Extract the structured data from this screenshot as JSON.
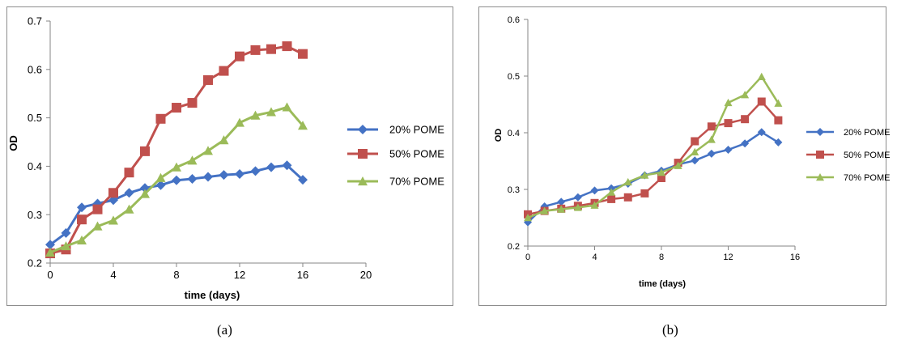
{
  "chart_data": [
    {
      "type": "line",
      "panel_label": "(a)",
      "xlabel": "time (days)",
      "ylabel": "OD",
      "xlim": [
        0,
        20
      ],
      "ylim": [
        0.2,
        0.7
      ],
      "x_ticks": [
        "0",
        "4",
        "8",
        "12",
        "16",
        "20"
      ],
      "y_ticks": [
        "0.2",
        "0.3",
        "0.4",
        "0.5",
        "0.6",
        "0.7"
      ],
      "grid": false,
      "legend_position": "right",
      "series": [
        {
          "name": "20% POME",
          "color": "#4472c4",
          "marker": "diamond",
          "x": [
            0,
            1,
            2,
            3,
            4,
            5,
            6,
            7,
            8,
            9,
            10,
            11,
            12,
            13,
            14,
            15,
            16
          ],
          "y": [
            0.238,
            0.262,
            0.315,
            0.323,
            0.33,
            0.345,
            0.355,
            0.361,
            0.371,
            0.374,
            0.378,
            0.382,
            0.384,
            0.39,
            0.398,
            0.402,
            0.372
          ]
        },
        {
          "name": "50% POME",
          "color": "#c0504d",
          "marker": "square",
          "x": [
            0,
            1,
            2,
            3,
            4,
            5,
            6,
            7,
            8,
            9,
            10,
            11,
            12,
            13,
            14,
            15,
            16
          ],
          "y": [
            0.22,
            0.228,
            0.29,
            0.311,
            0.345,
            0.387,
            0.431,
            0.498,
            0.521,
            0.531,
            0.578,
            0.597,
            0.627,
            0.64,
            0.642,
            0.648,
            0.632
          ]
        },
        {
          "name": "70% POME",
          "color": "#9bbb59",
          "marker": "triangle",
          "x": [
            0,
            1,
            2,
            3,
            4,
            5,
            6,
            7,
            8,
            9,
            10,
            11,
            12,
            13,
            14,
            15,
            16
          ],
          "y": [
            0.222,
            0.235,
            0.247,
            0.276,
            0.288,
            0.311,
            0.343,
            0.376,
            0.398,
            0.412,
            0.432,
            0.454,
            0.49,
            0.505,
            0.512,
            0.522,
            0.484
          ]
        }
      ]
    },
    {
      "type": "line",
      "panel_label": "(b)",
      "xlabel": "time (days)",
      "ylabel": "OD",
      "xlim": [
        0,
        16
      ],
      "ylim": [
        0.2,
        0.6
      ],
      "x_ticks": [
        "0",
        "4",
        "8",
        "12",
        "16"
      ],
      "y_ticks": [
        "0.2",
        "0.3",
        "0.4",
        "0.5",
        "0.6"
      ],
      "grid": false,
      "legend_position": "right",
      "series": [
        {
          "name": "20% POME",
          "color": "#4472c4",
          "marker": "diamond",
          "x": [
            0,
            1,
            2,
            3,
            4,
            5,
            6,
            7,
            8,
            9,
            10,
            11,
            12,
            13,
            14,
            15
          ],
          "y": [
            0.242,
            0.27,
            0.278,
            0.286,
            0.298,
            0.302,
            0.31,
            0.325,
            0.333,
            0.344,
            0.351,
            0.363,
            0.37,
            0.381,
            0.401,
            0.383
          ]
        },
        {
          "name": "50% POME",
          "color": "#c0504d",
          "marker": "square",
          "x": [
            0,
            1,
            2,
            3,
            4,
            5,
            6,
            7,
            8,
            9,
            10,
            11,
            12,
            13,
            14,
            15
          ],
          "y": [
            0.256,
            0.262,
            0.266,
            0.271,
            0.276,
            0.283,
            0.286,
            0.293,
            0.32,
            0.347,
            0.385,
            0.411,
            0.417,
            0.424,
            0.455,
            0.422
          ]
        },
        {
          "name": "70% POME",
          "color": "#9bbb59",
          "marker": "triangle",
          "x": [
            0,
            1,
            2,
            3,
            4,
            5,
            6,
            7,
            8,
            9,
            10,
            11,
            12,
            13,
            14,
            15
          ],
          "y": [
            0.25,
            0.262,
            0.265,
            0.268,
            0.272,
            0.295,
            0.313,
            0.325,
            0.33,
            0.342,
            0.366,
            0.388,
            0.453,
            0.467,
            0.499,
            0.452
          ]
        }
      ]
    }
  ]
}
